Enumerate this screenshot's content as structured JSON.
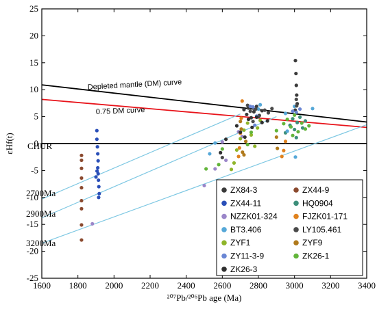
{
  "chart_data": {
    "type": "scatter",
    "title": "",
    "xlabel": "²⁰⁷Pb/²⁰⁶Pb age (Ma)",
    "ylabel": "εHf(t)",
    "xlim": [
      1600,
      3400
    ],
    "ylim": [
      -25,
      25
    ],
    "x_ticks": [
      "1600",
      "1800",
      "2000",
      "2200",
      "2400",
      "2600",
      "2800",
      "3000",
      "3200",
      "3400"
    ],
    "y_ticks": [
      "-25",
      "-20",
      "-15",
      "-10",
      "-5",
      "0",
      "5",
      "10",
      "15",
      "20",
      "25"
    ],
    "grid": false,
    "legend_position": "bottom-right",
    "reference_lines": [
      {
        "label": "Depleted mantle (DM) curve",
        "color": "#000000",
        "points": [
          [
            1600,
            10.9
          ],
          [
            3400,
            4.0
          ]
        ]
      },
      {
        "label": "0.75 DM curve",
        "color": "#e8141b",
        "points": [
          [
            1600,
            8.2
          ],
          [
            3400,
            3.0
          ]
        ]
      },
      {
        "label": "CHUR",
        "color": "#000000",
        "points": [
          [
            1600,
            0
          ],
          [
            3400,
            0
          ]
        ]
      },
      {
        "label": "2700Ma",
        "color": "#7ec8e3",
        "points": [
          [
            1600,
            -10.3
          ],
          [
            2700,
            5.5
          ]
        ]
      },
      {
        "label": "2900Ma",
        "color": "#7ec8e3",
        "points": [
          [
            1600,
            -13.8
          ],
          [
            2900,
            5.0
          ]
        ]
      },
      {
        "label": "3200Ma",
        "color": "#7ec8e3",
        "points": [
          [
            1600,
            -18.5
          ],
          [
            3400,
            3.5
          ]
        ]
      }
    ],
    "series": [
      {
        "name": "ZX84-3",
        "color": "#3a3a3a",
        "points": [
          [
            2720,
            6.3
          ],
          [
            2735,
            5.4
          ],
          [
            2745,
            6.6
          ],
          [
            2760,
            4.8
          ],
          [
            2775,
            5.9
          ],
          [
            2790,
            6.9
          ],
          [
            2805,
            5.2
          ],
          [
            2820,
            6.1
          ],
          [
            3005,
            15.4
          ],
          [
            3008,
            13.0
          ],
          [
            3010,
            10.8
          ],
          [
            3012,
            9.0
          ],
          [
            3015,
            7.4
          ],
          [
            3004,
            6.2
          ]
        ]
      },
      {
        "name": "ZX44-9",
        "color": "#8b4a2f",
        "points": [
          [
            1820,
            -15.1
          ],
          [
            1820,
            -12.1
          ],
          [
            1820,
            -10.6
          ],
          [
            1820,
            -8.2
          ],
          [
            1820,
            -6.4
          ],
          [
            1820,
            -4.6
          ],
          [
            1820,
            -3.1
          ],
          [
            1820,
            -2.2
          ],
          [
            1820,
            -17.9
          ]
        ]
      },
      {
        "name": "ZX44-11",
        "color": "#2a4fb8",
        "points": [
          [
            1905,
            2.4
          ],
          [
            1905,
            0.8
          ],
          [
            1908,
            -0.6
          ],
          [
            1910,
            -1.9
          ],
          [
            1912,
            -3.2
          ],
          [
            1910,
            -4.5
          ],
          [
            1912,
            -5.6
          ],
          [
            1914,
            -6.8
          ],
          [
            1916,
            -8.0
          ],
          [
            1918,
            -9.3
          ],
          [
            1915,
            -10.0
          ],
          [
            1906,
            -5.1
          ],
          [
            1900,
            -6.2
          ]
        ]
      },
      {
        "name": "HQ0904",
        "color": "#3d8f7a",
        "points": [
          [
            2950,
            2.0
          ],
          [
            2975,
            3.4
          ],
          [
            2990,
            4.6
          ],
          [
            3000,
            2.6
          ],
          [
            3015,
            3.9
          ],
          [
            3030,
            4.9
          ],
          [
            3045,
            2.9
          ],
          [
            3060,
            4.2
          ],
          [
            3010,
            1.1
          ]
        ]
      },
      {
        "name": "NZZK01-324",
        "color": "#9b86c9",
        "points": [
          [
            2500,
            -7.8
          ],
          [
            2560,
            -4.7
          ],
          [
            2620,
            -3.1
          ],
          [
            2690,
            2.2
          ],
          [
            2710,
            1.3
          ],
          [
            1880,
            -14.9
          ],
          [
            2600,
            0.3
          ]
        ]
      },
      {
        "name": "FJZK01-171",
        "color": "#e0821e",
        "points": [
          [
            2710,
            7.9
          ],
          [
            2705,
            4.7
          ],
          [
            2700,
            1.9
          ],
          [
            2695,
            -0.8
          ],
          [
            2690,
            -2.4
          ],
          [
            2930,
            -2.4
          ],
          [
            2940,
            -1.3
          ],
          [
            2950,
            0.4
          ]
        ]
      },
      {
        "name": "BT3.406",
        "color": "#56a8d8",
        "points": [
          [
            2530,
            -1.9
          ],
          [
            2560,
            0.1
          ],
          [
            2800,
            6.4
          ],
          [
            2810,
            7.2
          ],
          [
            2950,
            5.6
          ],
          [
            3000,
            6.9
          ],
          [
            3100,
            6.5
          ],
          [
            3005,
            -2.5
          ],
          [
            2980,
            3.1
          ],
          [
            2960,
            2.3
          ]
        ]
      },
      {
        "name": "LY105.461",
        "color": "#4a4a4a",
        "points": [
          [
            2600,
            -2.6
          ],
          [
            2740,
            7.1
          ],
          [
            2755,
            6.0
          ],
          [
            2770,
            4.1
          ],
          [
            2785,
            6.4
          ],
          [
            2800,
            5.0
          ],
          [
            2835,
            6.2
          ],
          [
            2855,
            5.7
          ],
          [
            2875,
            6.5
          ],
          [
            3010,
            8.2
          ],
          [
            3012,
            7.0
          ]
        ]
      },
      {
        "name": "ZYF1",
        "color": "#8fb52a",
        "points": [
          [
            2650,
            -4.8
          ],
          [
            2665,
            -3.6
          ],
          [
            2680,
            -1.2
          ],
          [
            2700,
            0.9
          ],
          [
            2720,
            2.5
          ],
          [
            2740,
            3.8
          ],
          [
            2760,
            1.6
          ],
          [
            2780,
            -0.5
          ],
          [
            2795,
            2.9
          ],
          [
            2810,
            4.3
          ]
        ]
      },
      {
        "name": "ZYF9",
        "color": "#b07a1c",
        "points": [
          [
            2700,
            4.1
          ],
          [
            2705,
            2.7
          ],
          [
            2712,
            -1.6
          ],
          [
            2720,
            -2.1
          ],
          [
            2730,
            0.4
          ],
          [
            2900,
            1.2
          ],
          [
            2905,
            -0.9
          ]
        ]
      },
      {
        "name": "ZY11-3-9",
        "color": "#6a86d4",
        "points": [
          [
            2755,
            6.9
          ],
          [
            2770,
            6.8
          ],
          [
            2790,
            5.1
          ],
          [
            2990,
            6.0
          ],
          [
            3010,
            5.8
          ],
          [
            3030,
            6.4
          ],
          [
            2780,
            3.4
          ]
        ]
      },
      {
        "name": "ZK26-1",
        "color": "#62b53a",
        "points": [
          [
            2510,
            -4.7
          ],
          [
            2580,
            -3.9
          ],
          [
            2600,
            -1.0
          ],
          [
            2740,
            -0.2
          ],
          [
            2760,
            2.1
          ],
          [
            2900,
            2.4
          ],
          [
            2940,
            3.7
          ],
          [
            2960,
            4.5
          ],
          [
            2980,
            3.1
          ],
          [
            3000,
            5.3
          ],
          [
            3020,
            2.2
          ],
          [
            3040,
            3.8
          ],
          [
            3060,
            2.7
          ],
          [
            3080,
            3.3
          ],
          [
            2990,
            1.5
          ]
        ]
      },
      {
        "name": "ZK26-3",
        "color": "#2f2f2f",
        "points": [
          [
            2590,
            -1.7
          ],
          [
            2620,
            0.8
          ],
          [
            2680,
            3.3
          ],
          [
            2700,
            2.1
          ],
          [
            2725,
            1.2
          ],
          [
            2745,
            4.5
          ],
          [
            2765,
            3.0
          ],
          [
            2790,
            4.9
          ],
          [
            2820,
            3.9
          ],
          [
            2850,
            4.2
          ]
        ]
      }
    ]
  }
}
